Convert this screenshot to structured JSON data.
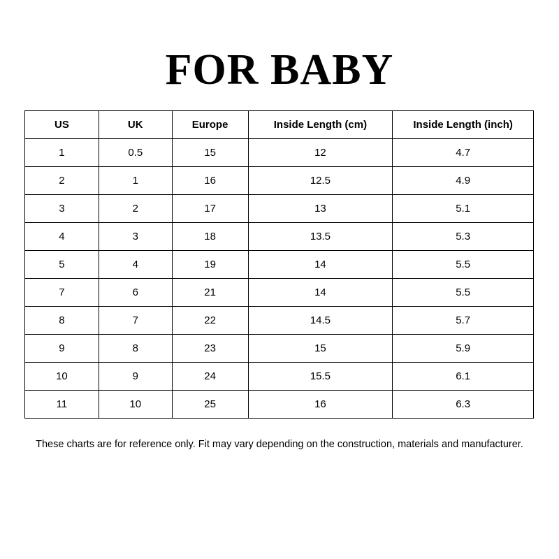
{
  "title": "FOR BABY",
  "table": {
    "headers": [
      "US",
      "UK",
      "Europe",
      "Inside Length (cm)",
      "Inside Length (inch)"
    ],
    "rows": [
      [
        "1",
        "0.5",
        "15",
        "12",
        "4.7"
      ],
      [
        "2",
        "1",
        "16",
        "12.5",
        "4.9"
      ],
      [
        "3",
        "2",
        "17",
        "13",
        "5.1"
      ],
      [
        "4",
        "3",
        "18",
        "13.5",
        "5.3"
      ],
      [
        "5",
        "4",
        "19",
        "14",
        "5.5"
      ],
      [
        "7",
        "6",
        "21",
        "14",
        "5.5"
      ],
      [
        "8",
        "7",
        "22",
        "14.5",
        "5.7"
      ],
      [
        "9",
        "8",
        "23",
        "15",
        "5.9"
      ],
      [
        "10",
        "9",
        "24",
        "15.5",
        "6.1"
      ],
      [
        "11",
        "10",
        "25",
        "16",
        "6.3"
      ]
    ]
  },
  "note": "These charts are for reference only. Fit may vary depending on the construction, materials and manufacturer."
}
